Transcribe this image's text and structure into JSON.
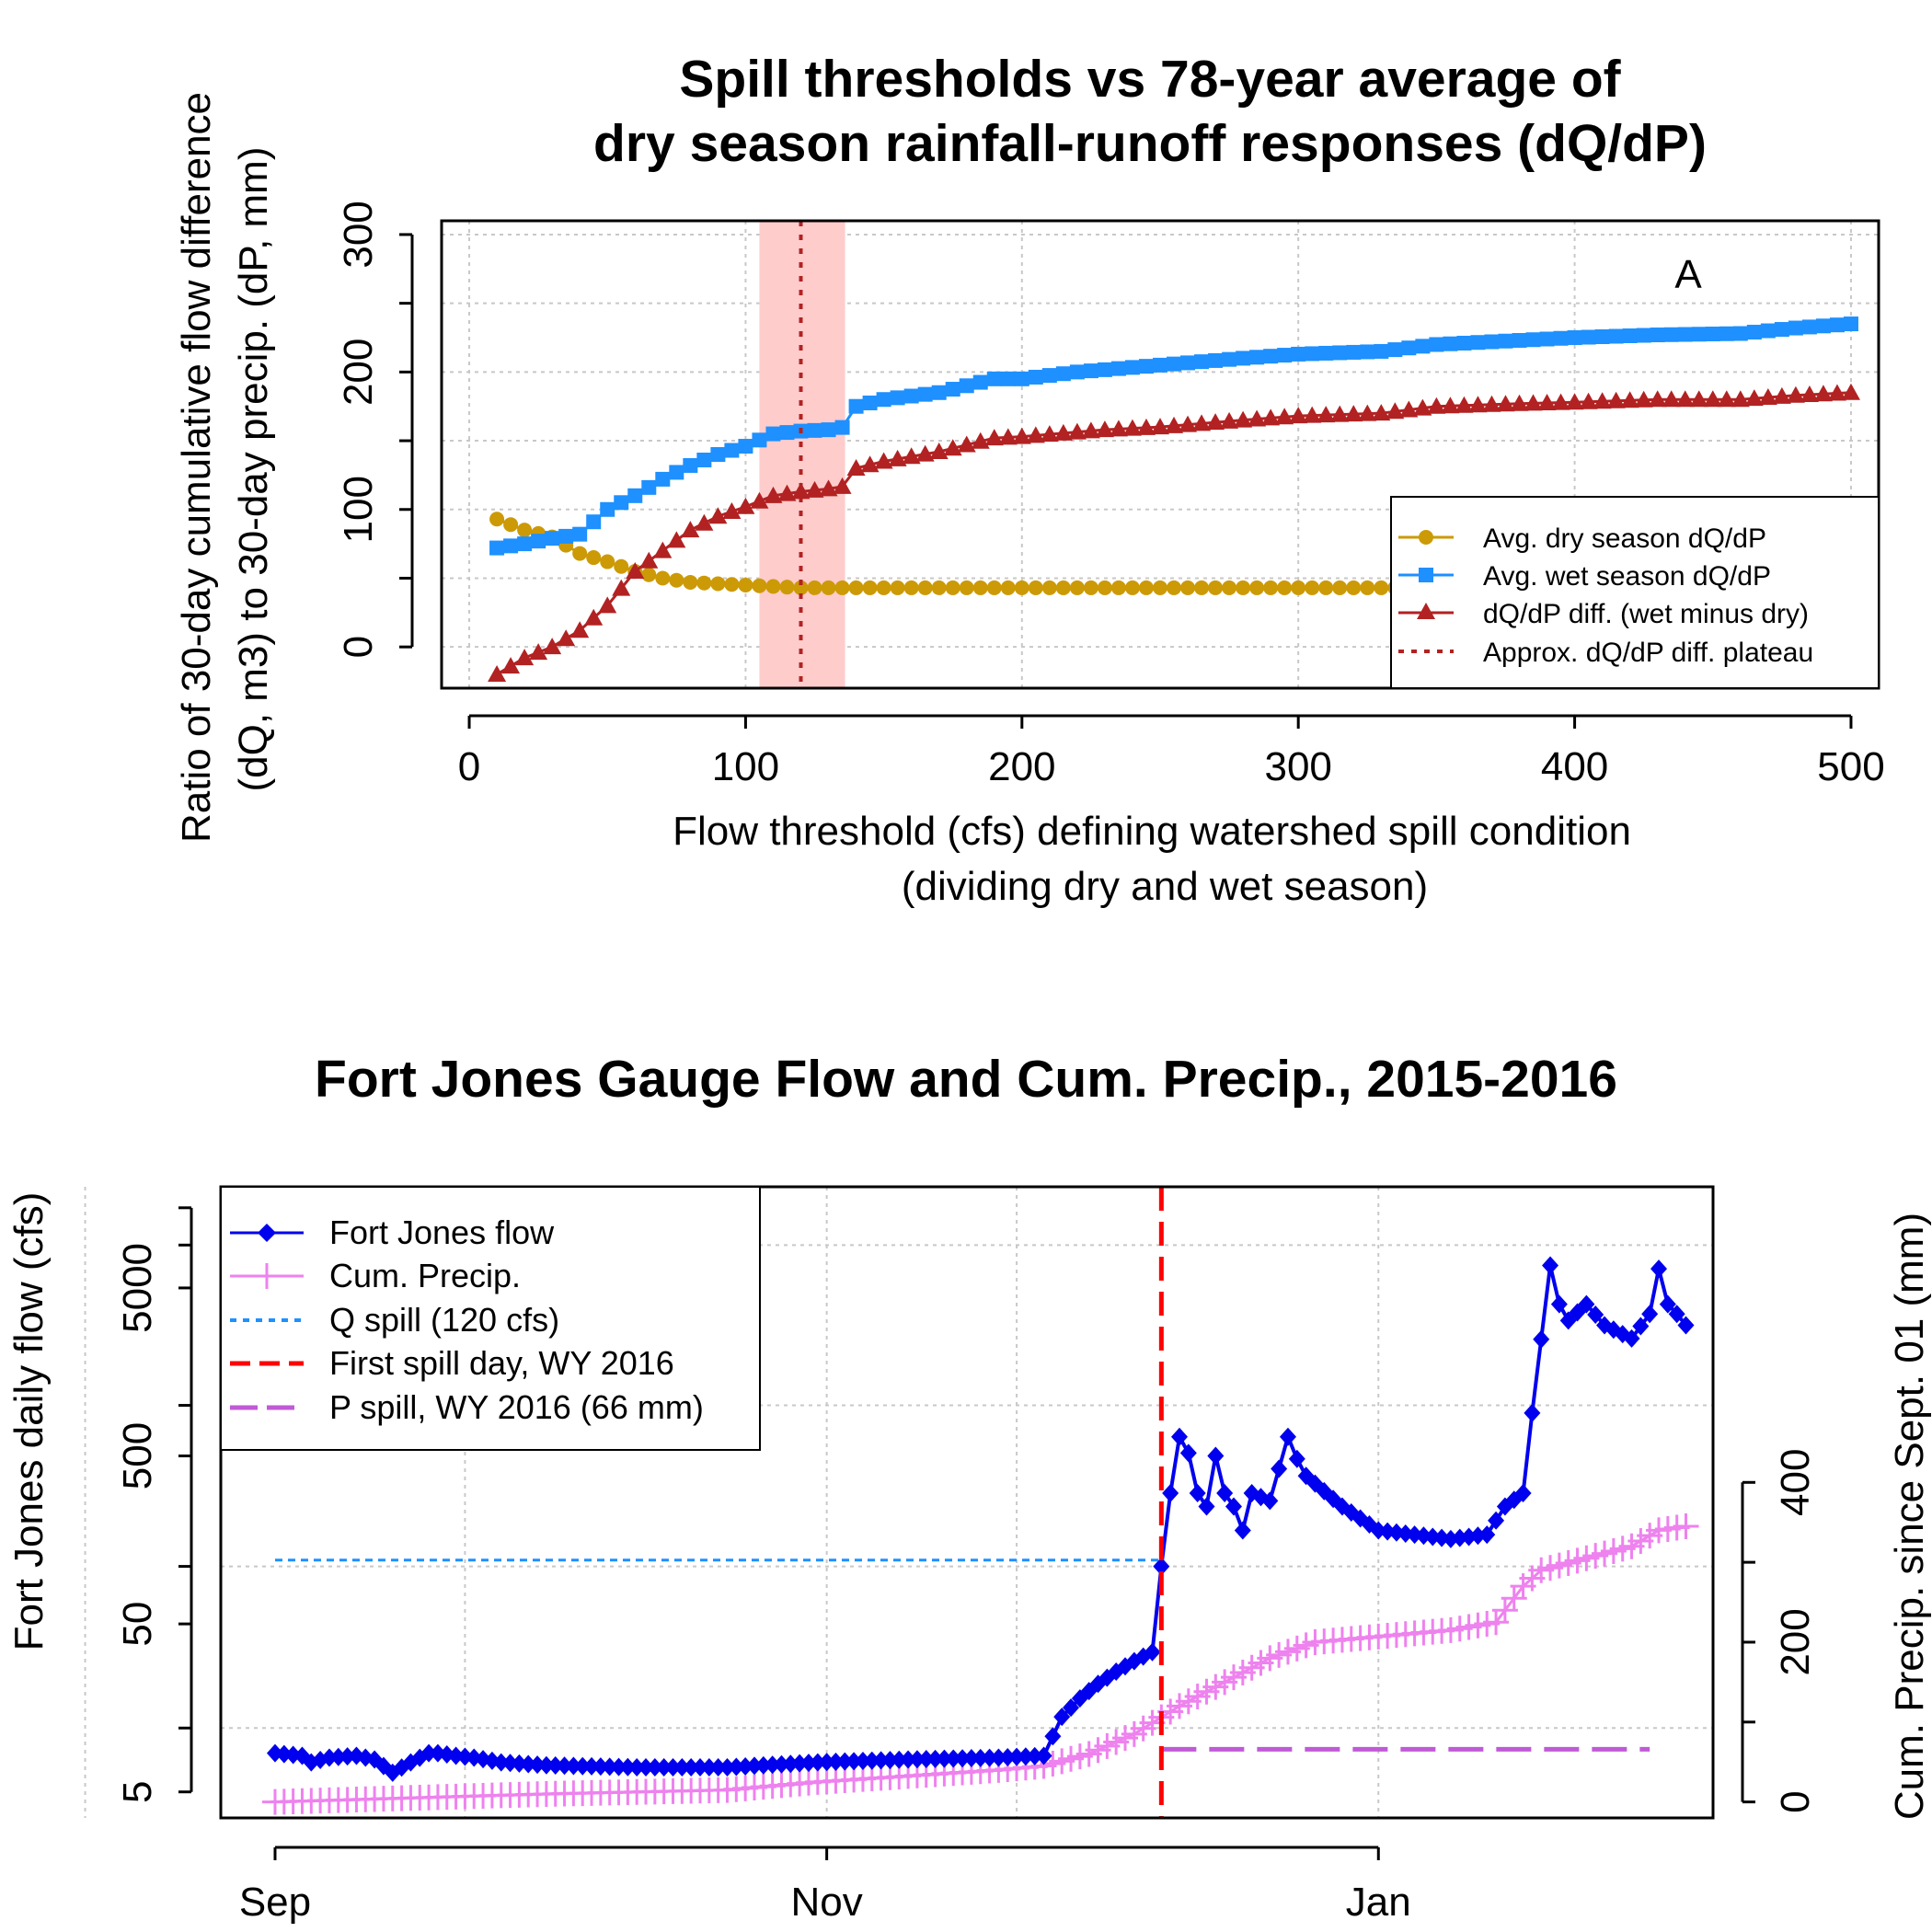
{
  "chart_data": [
    {
      "type": "line",
      "title_lines": [
        "Spill thresholds vs 78-year average of",
        "dry season rainfall-runoff responses (dQ/dP)"
      ],
      "xlabel_lines": [
        "Flow threshold (cfs) defining watershed spill condition",
        "(dividing dry and wet season)"
      ],
      "ylabel_lines": [
        "Ratio of 30-day cumulative flow difference",
        "(dQ, m3) to 30-day precip. (dP, mm)"
      ],
      "panel_label": "A",
      "xlim": [
        -10,
        510
      ],
      "ylim": [
        -30,
        310
      ],
      "xticks": [
        0,
        100,
        200,
        300,
        400,
        500
      ],
      "yticks": [
        0,
        100,
        200,
        300
      ],
      "grid": true,
      "legend_position": "bottom-right",
      "shaded_band": {
        "x0": 105,
        "x1": 136,
        "color": "#ffcccc"
      },
      "plateau_line": {
        "x": 120,
        "color": "#b22222"
      },
      "series": [
        {
          "name": "Avg. dry season dQ/dP",
          "color": "#cc9a06",
          "marker": "circle",
          "x": [
            10,
            20,
            30,
            40,
            50,
            60,
            70,
            80,
            90,
            100,
            110,
            120,
            130,
            140,
            150,
            200,
            250,
            300,
            350,
            400,
            450,
            500
          ],
          "values": [
            93,
            85,
            80,
            68,
            62,
            55,
            50,
            47,
            46,
            45,
            44,
            43,
            43,
            43,
            43,
            43,
            43,
            43,
            43,
            43,
            43,
            43
          ]
        },
        {
          "name": "Avg. wet season dQ/dP",
          "color": "#1e90ff",
          "marker": "square",
          "x": [
            10,
            20,
            30,
            40,
            50,
            60,
            70,
            80,
            90,
            100,
            110,
            120,
            130,
            136,
            140,
            150,
            170,
            190,
            200,
            220,
            250,
            280,
            300,
            330,
            350,
            380,
            400,
            430,
            460,
            480,
            500
          ],
          "values": [
            72,
            75,
            79,
            82,
            100,
            110,
            122,
            132,
            140,
            146,
            155,
            157,
            158,
            160,
            175,
            180,
            185,
            195,
            195,
            200,
            205,
            210,
            213,
            215,
            220,
            223,
            225,
            227,
            228,
            232,
            235
          ]
        },
        {
          "name": "dQ/dP diff. (wet minus dry)",
          "color": "#b22222",
          "marker": "triangle",
          "x": [
            10,
            20,
            30,
            40,
            50,
            60,
            70,
            80,
            90,
            100,
            110,
            120,
            130,
            136,
            140,
            150,
            170,
            190,
            200,
            230,
            250,
            280,
            300,
            330,
            350,
            380,
            400,
            430,
            460,
            480,
            500
          ],
          "values": [
            -20,
            -8,
            0,
            12,
            30,
            55,
            70,
            85,
            95,
            102,
            110,
            113,
            115,
            117,
            130,
            135,
            142,
            152,
            153,
            158,
            160,
            165,
            168,
            170,
            175,
            177,
            178,
            180,
            180,
            183,
            185
          ]
        }
      ],
      "legend_entries": [
        "Avg. dry season dQ/dP",
        "Avg. wet season dQ/dP",
        "dQ/dP diff. (wet minus dry)",
        "Approx. dQ/dP diff. plateau"
      ]
    },
    {
      "type": "line",
      "title": "Fort Jones Gauge Flow and Cum. Precip., 2015-2016",
      "ylabel_left": "Fort Jones daily flow (cfs)",
      "ylabel_right": "Cum. Precip. since Sept. 01 (mm)",
      "x_tick_labels": [
        "Sep",
        "Nov",
        "Jan"
      ],
      "x_tick_days": [
        0,
        61,
        122
      ],
      "x_grid_days": [
        -21,
        21,
        61,
        82,
        122
      ],
      "xlim_days": [
        -6,
        159
      ],
      "y_left_scale": "log",
      "y_left_lim": [
        3.5,
        20000
      ],
      "y_left_ticks": [
        5,
        50,
        500,
        5000
      ],
      "y_left_grid": [
        12,
        110,
        1000,
        9000
      ],
      "y_right_lim": [
        -20,
        770
      ],
      "y_right_ticks": [
        0,
        200,
        400
      ],
      "y_right_extra_ticks": [
        100,
        300
      ],
      "grid": true,
      "legend_position": "top-left",
      "q_spill": {
        "value_cfs": 120,
        "color": "#1e90ff"
      },
      "first_spill_day": {
        "day": 98,
        "color": "#ff0000"
      },
      "p_spill": {
        "value_mm": 66,
        "color": "#c05ad6"
      },
      "legend_entries": [
        "Fort Jones flow",
        "Cum. Precip.",
        "Q spill (120 cfs)",
        "First spill day, WY 2016",
        "P spill, WY 2016 (66 mm)"
      ],
      "flow_series": {
        "name": "Fort Jones flow",
        "color": "#0000ee",
        "anchor_days": [
          0,
          3,
          4,
          6,
          9,
          11,
          13,
          15,
          17,
          18,
          20,
          22,
          25,
          30,
          40,
          50,
          60,
          70,
          80,
          85,
          87,
          89,
          91,
          93,
          95,
          97,
          98,
          99,
          100,
          101,
          102,
          103,
          104,
          105,
          106,
          107,
          108,
          110,
          112,
          113,
          114,
          118,
          122,
          126,
          130,
          134,
          136,
          138,
          139,
          141,
          142,
          143,
          145,
          147,
          150,
          152,
          153,
          154,
          155,
          156
        ],
        "anchor_values": [
          8.5,
          8.2,
          7.5,
          8.0,
          8.2,
          7.8,
          6.5,
          7.5,
          8.5,
          8.5,
          8.2,
          8.0,
          7.5,
          7.2,
          7.0,
          7.0,
          7.5,
          7.8,
          8.0,
          8.2,
          14,
          18,
          22,
          26,
          30,
          34,
          110,
          300,
          650,
          520,
          300,
          250,
          500,
          300,
          250,
          180,
          300,
          270,
          650,
          480,
          380,
          250,
          180,
          170,
          160,
          170,
          250,
          300,
          900,
          6800,
          4000,
          3200,
          4000,
          3000,
          2500,
          3500,
          6500,
          4000,
          3500,
          3000
        ]
      },
      "precip_series": {
        "name": "Cum. Precip.",
        "color": "#ee82ee",
        "anchor_days": [
          0,
          30,
          50,
          60,
          80,
          85,
          90,
          95,
          100,
          105,
          110,
          115,
          120,
          130,
          135,
          138,
          140,
          145,
          150,
          153,
          156
        ],
        "anchor_values": [
          0,
          10,
          15,
          25,
          40,
          45,
          60,
          85,
          120,
          150,
          180,
          200,
          205,
          215,
          225,
          270,
          290,
          305,
          320,
          340,
          345
        ]
      }
    }
  ]
}
